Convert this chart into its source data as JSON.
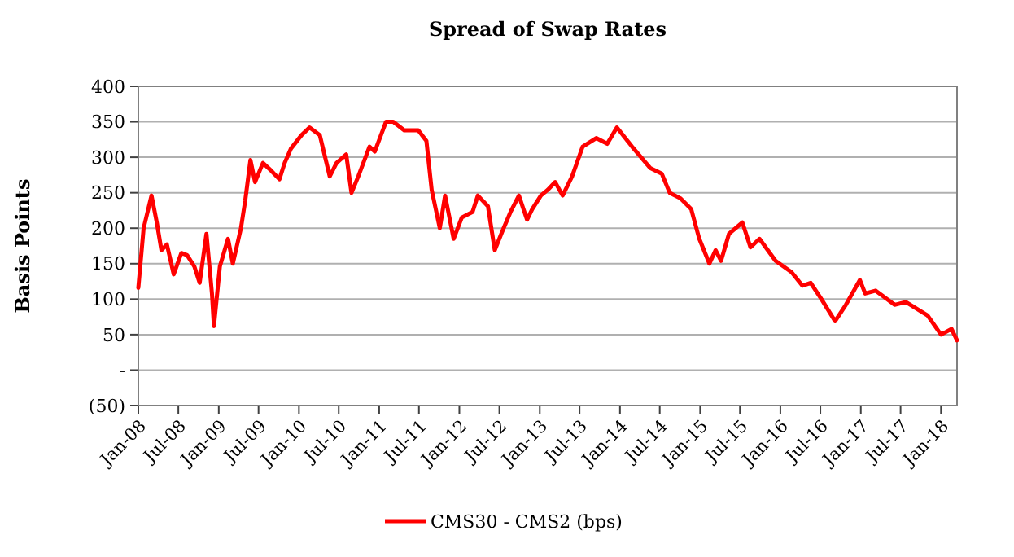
{
  "chart_data": {
    "type": "line",
    "title": "Spread of Swap Rates",
    "ylabel": "Basis Points",
    "x": [
      "2008-01-01",
      "2008-01-25",
      "2008-03-01",
      "2008-03-25",
      "2008-04-15",
      "2008-05-10",
      "2008-06-10",
      "2008-07-15",
      "2008-08-10",
      "2008-09-12",
      "2008-10-06",
      "2008-11-06",
      "2008-12-01",
      "2008-12-10",
      "2009-01-06",
      "2009-02-12",
      "2009-03-06",
      "2009-04-12",
      "2009-05-01",
      "2009-05-25",
      "2009-06-15",
      "2009-07-21",
      "2009-08-28",
      "2009-10-04",
      "2009-10-28",
      "2009-11-25",
      "2010-01-12",
      "2010-02-18",
      "2010-04-06",
      "2010-05-21",
      "2010-06-21",
      "2010-08-04",
      "2010-08-28",
      "2010-09-28",
      "2010-11-18",
      "2010-12-12",
      "2011-02-01",
      "2011-03-06",
      "2011-04-25",
      "2011-06-28",
      "2011-08-04",
      "2011-08-28",
      "2011-10-04",
      "2011-10-28",
      "2011-12-06",
      "2012-01-12",
      "2012-03-01",
      "2012-03-25",
      "2012-05-10",
      "2012-06-10",
      "2012-07-15",
      "2012-08-21",
      "2012-09-28",
      "2012-11-04",
      "2012-11-28",
      "2013-01-06",
      "2013-02-06",
      "2013-03-12",
      "2013-04-15",
      "2013-05-28",
      "2013-07-15",
      "2013-09-15",
      "2013-11-04",
      "2013-12-18",
      "2014-02-25",
      "2014-05-18",
      "2014-07-10",
      "2014-08-15",
      "2014-10-04",
      "2014-11-21",
      "2014-12-28",
      "2015-02-12",
      "2015-03-12",
      "2015-04-06",
      "2015-05-12",
      "2015-07-12",
      "2015-08-18",
      "2015-09-28",
      "2015-12-10",
      "2016-02-21",
      "2016-04-10",
      "2016-05-18",
      "2016-07-06",
      "2016-09-06",
      "2016-10-25",
      "2016-12-28",
      "2017-01-21",
      "2017-03-10",
      "2017-06-04",
      "2017-07-25",
      "2017-11-01",
      "2018-01-01",
      "2018-02-18",
      "2018-03-15"
    ],
    "series": [
      {
        "name": "CMS30 - CMS2 (bps)",
        "color": "#ff0000",
        "values": [
          116,
          200,
          246,
          208,
          169,
          177,
          135,
          165,
          162,
          146,
          123,
          192,
          108,
          62,
          146,
          185,
          150,
          200,
          238,
          296,
          265,
          292,
          281,
          269,
          292,
          312,
          331,
          342,
          331,
          273,
          292,
          304,
          250,
          273,
          315,
          308,
          350,
          350,
          338,
          338,
          323,
          254,
          200,
          246,
          185,
          215,
          223,
          246,
          231,
          169,
          196,
          223,
          246,
          212,
          227,
          246,
          254,
          265,
          246,
          273,
          315,
          327,
          319,
          342,
          315,
          285,
          277,
          250,
          242,
          227,
          185,
          150,
          169,
          154,
          192,
          208,
          173,
          185,
          154,
          138,
          119,
          123,
          100,
          69,
          92,
          127,
          108,
          112,
          92,
          96,
          77,
          50,
          58,
          42
        ]
      }
    ],
    "xlim": [
      "2008-01-01",
      "2018-03-15"
    ],
    "xticks": [
      {
        "value": "2008-01-01",
        "label": "Jan-08"
      },
      {
        "value": "2008-07-01",
        "label": "Jul-08"
      },
      {
        "value": "2009-01-01",
        "label": "Jan-09"
      },
      {
        "value": "2009-07-01",
        "label": "Jul-09"
      },
      {
        "value": "2010-01-01",
        "label": "Jan-10"
      },
      {
        "value": "2010-07-01",
        "label": "Jul-10"
      },
      {
        "value": "2011-01-01",
        "label": "Jan-11"
      },
      {
        "value": "2011-07-01",
        "label": "Jul-11"
      },
      {
        "value": "2012-01-01",
        "label": "Jan-12"
      },
      {
        "value": "2012-07-01",
        "label": "Jul-12"
      },
      {
        "value": "2013-01-01",
        "label": "Jan-13"
      },
      {
        "value": "2013-07-01",
        "label": "Jul-13"
      },
      {
        "value": "2014-01-01",
        "label": "Jan-14"
      },
      {
        "value": "2014-07-01",
        "label": "Jul-14"
      },
      {
        "value": "2015-01-01",
        "label": "Jan-15"
      },
      {
        "value": "2015-07-01",
        "label": "Jul-15"
      },
      {
        "value": "2016-01-01",
        "label": "Jan-16"
      },
      {
        "value": "2016-07-01",
        "label": "Jul-16"
      },
      {
        "value": "2017-01-01",
        "label": "Jan-17"
      },
      {
        "value": "2017-07-01",
        "label": "Jul-17"
      },
      {
        "value": "2018-01-01",
        "label": "Jan-18"
      }
    ],
    "ylim": [
      -50,
      400
    ],
    "yticks": [
      {
        "value": -50,
        "label": "(50)"
      },
      {
        "value": 0,
        "label": "-"
      },
      50,
      100,
      150,
      200,
      250,
      300,
      350,
      400
    ],
    "grid": "y",
    "legend": "bottom",
    "line_style": "solid"
  }
}
